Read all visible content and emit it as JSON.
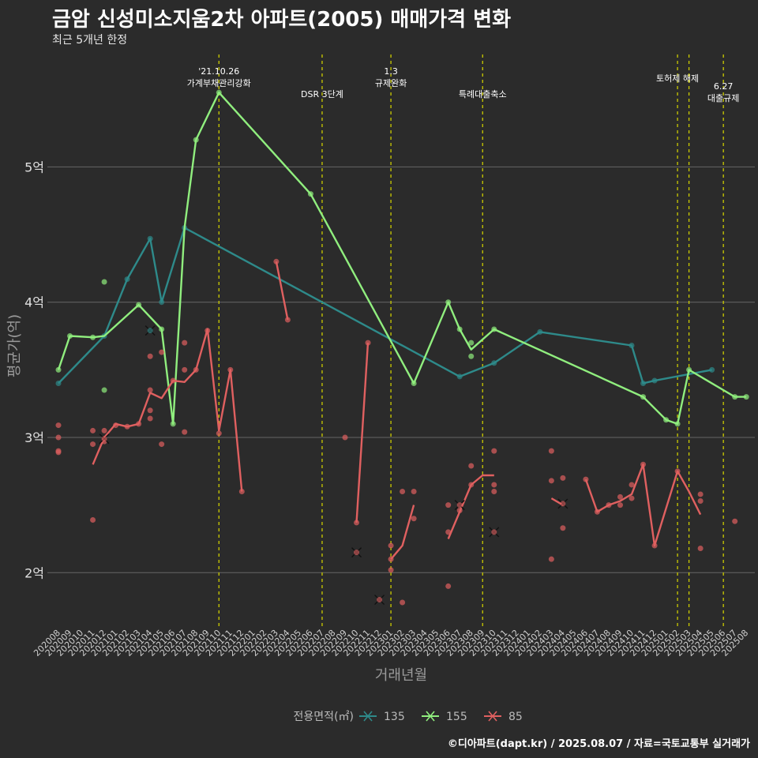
{
  "header": {
    "title": "금암 신성미소지움2차 아파트(2005) 매매가격 변화",
    "subtitle": "최근 5개년 한정"
  },
  "footer": {
    "source": "©디아파트(dapt.kr) / 2025.08.07 / 자료=국토교통부 실거래가"
  },
  "colors": {
    "s135": "#2e8a8a",
    "s155": "#90ee7e",
    "s85": "#e06060",
    "vline": "#cccc00",
    "grid": "#666666"
  },
  "chart_data": {
    "type": "line",
    "xlabel": "거래년월",
    "ylabel": "평균가(억)",
    "x_categories": [
      "202008",
      "202009",
      "202010",
      "202011",
      "202012",
      "202101",
      "202102",
      "202103",
      "202104",
      "202105",
      "202106",
      "202107",
      "202108",
      "202109",
      "202110",
      "202111",
      "202112",
      "202201",
      "202202",
      "202203",
      "202204",
      "202205",
      "202206",
      "202207",
      "202208",
      "202209",
      "202210",
      "202211",
      "202212",
      "202301",
      "202302",
      "202303",
      "202304",
      "202305",
      "202306",
      "202307",
      "202308",
      "202309",
      "202310",
      "202311",
      "202312",
      "202401",
      "202402",
      "202403",
      "202404",
      "202405",
      "202406",
      "202407",
      "202408",
      "202409",
      "202410",
      "202411",
      "202412",
      "202501",
      "202502",
      "202503",
      "202504",
      "202505",
      "202506",
      "202507",
      "202508"
    ],
    "y_ticks": [
      {
        "value": 2,
        "label": "2억"
      },
      {
        "value": 3,
        "label": "3억"
      },
      {
        "value": 4,
        "label": "4억"
      },
      {
        "value": 5,
        "label": "5억"
      }
    ],
    "ylim": [
      1.6,
      6.1
    ],
    "legend": {
      "title": "전용면적(㎡)",
      "position": "bottom"
    },
    "series": [
      {
        "name": "135",
        "color": "#2e8a8a",
        "line": [
          [
            "202008",
            3.4
          ],
          [
            "202012",
            3.75
          ],
          [
            "202102",
            4.17
          ],
          [
            "202104",
            4.47
          ],
          [
            "202105",
            4.0
          ],
          [
            "202107",
            4.55
          ],
          [
            "202307",
            3.45
          ],
          [
            "202310",
            3.55
          ],
          [
            "202402",
            3.78
          ],
          [
            "202410",
            3.68
          ],
          [
            "202411",
            3.4
          ],
          [
            "202412",
            3.42
          ],
          [
            "202505",
            3.5
          ]
        ],
        "points": [
          [
            "202008",
            3.4
          ],
          [
            "202012",
            3.75
          ],
          [
            "202102",
            4.17
          ],
          [
            "202104",
            4.47
          ],
          [
            "202105",
            4.0
          ],
          [
            "202107",
            4.55
          ],
          [
            "202307",
            3.45
          ],
          [
            "202310",
            3.55
          ],
          [
            "202402",
            3.78
          ],
          [
            "202410",
            3.68
          ],
          [
            "202411",
            3.4
          ],
          [
            "202412",
            3.42
          ],
          [
            "202505",
            3.5
          ]
        ],
        "x_marks": [
          [
            "202104",
            3.79
          ]
        ]
      },
      {
        "name": "155",
        "color": "#90ee7e",
        "line": [
          [
            "202008",
            3.5
          ],
          [
            "202009",
            3.75
          ],
          [
            "202011",
            3.74
          ],
          [
            "202012",
            3.75
          ],
          [
            "202103",
            3.98
          ],
          [
            "202105",
            3.8
          ],
          [
            "202106",
            3.1
          ],
          [
            "202107",
            4.55
          ],
          [
            "202108",
            5.2
          ],
          [
            "202110",
            5.55
          ],
          [
            "202206",
            4.8
          ],
          [
            "202303",
            3.4
          ],
          [
            "202306",
            4.0
          ],
          [
            "202307",
            3.8
          ],
          [
            "202308",
            3.65
          ],
          [
            "202310",
            3.8
          ],
          [
            "202411",
            3.3
          ],
          [
            "202501",
            3.13
          ],
          [
            "202502",
            3.1
          ],
          [
            "202503",
            3.5
          ],
          [
            "202507",
            3.3
          ],
          [
            "202508",
            3.3
          ]
        ],
        "points": [
          [
            "202008",
            3.5
          ],
          [
            "202009",
            3.75
          ],
          [
            "202011",
            3.74
          ],
          [
            "202012",
            4.15
          ],
          [
            "202012",
            3.35
          ],
          [
            "202103",
            3.98
          ],
          [
            "202105",
            3.8
          ],
          [
            "202106",
            3.1
          ],
          [
            "202108",
            5.2
          ],
          [
            "202110",
            5.55
          ],
          [
            "202206",
            4.8
          ],
          [
            "202303",
            3.4
          ],
          [
            "202306",
            4.0
          ],
          [
            "202307",
            3.8
          ],
          [
            "202308",
            3.7
          ],
          [
            "202308",
            3.6
          ],
          [
            "202310",
            3.8
          ],
          [
            "202411",
            3.3
          ],
          [
            "202501",
            3.13
          ],
          [
            "202502",
            3.1
          ],
          [
            "202503",
            3.5
          ],
          [
            "202507",
            3.3
          ],
          [
            "202508",
            3.3
          ]
        ],
        "x_marks": []
      },
      {
        "name": "85",
        "color": "#e06060",
        "line_segments": [
          [
            [
              "202011",
              2.8
            ],
            [
              "202012",
              3.0
            ],
            [
              "202101",
              3.1
            ],
            [
              "202102",
              3.08
            ],
            [
              "202103",
              3.1
            ],
            [
              "202104",
              3.33
            ],
            [
              "202105",
              3.29
            ],
            [
              "202106",
              3.42
            ],
            [
              "202107",
              3.41
            ],
            [
              "202108",
              3.5
            ],
            [
              "202109",
              3.8
            ],
            [
              "202110",
              3.05
            ],
            [
              "202111",
              3.5
            ],
            [
              "202112",
              2.6
            ]
          ],
          [
            [
              "202203",
              4.3
            ],
            [
              "202204",
              3.87
            ]
          ],
          [
            [
              "202210",
              2.37
            ],
            [
              "202211",
              3.7
            ]
          ],
          [
            [
              "202301",
              2.1
            ],
            [
              "202302",
              2.2
            ],
            [
              "202303",
              2.5
            ]
          ],
          [
            [
              "202306",
              2.25
            ],
            [
              "202307",
              2.45
            ],
            [
              "202308",
              2.65
            ],
            [
              "202309",
              2.72
            ],
            [
              "202310",
              2.72
            ]
          ],
          [
            [
              "202403",
              2.55
            ],
            [
              "202404",
              2.5
            ]
          ],
          [
            [
              "202406",
              2.69
            ],
            [
              "202407",
              2.45
            ],
            [
              "202408",
              2.5
            ],
            [
              "202409",
              2.53
            ],
            [
              "202410",
              2.58
            ],
            [
              "202411",
              2.8
            ],
            [
              "202412",
              2.2
            ],
            [
              "202502",
              2.75
            ],
            [
              "202503",
              2.6
            ],
            [
              "202504",
              2.43
            ]
          ]
        ],
        "points": [
          [
            "202008",
            3.09
          ],
          [
            "202008",
            3.0
          ],
          [
            "202008",
            2.9
          ],
          [
            "202008",
            2.89
          ],
          [
            "202011",
            3.05
          ],
          [
            "202011",
            2.95
          ],
          [
            "202011",
            2.39
          ],
          [
            "202012",
            3.05
          ],
          [
            "202012",
            2.97
          ],
          [
            "202101",
            3.09
          ],
          [
            "202102",
            3.08
          ],
          [
            "202103",
            3.1
          ],
          [
            "202104",
            3.6
          ],
          [
            "202104",
            3.35
          ],
          [
            "202104",
            3.2
          ],
          [
            "202104",
            3.14
          ],
          [
            "202105",
            3.63
          ],
          [
            "202105",
            2.95
          ],
          [
            "202106",
            3.42
          ],
          [
            "202107",
            3.7
          ],
          [
            "202107",
            3.5
          ],
          [
            "202107",
            3.04
          ],
          [
            "202108",
            3.5
          ],
          [
            "202109",
            3.79
          ],
          [
            "202110",
            3.03
          ],
          [
            "202111",
            3.5
          ],
          [
            "202112",
            2.6
          ],
          [
            "202203",
            4.3
          ],
          [
            "202204",
            3.87
          ],
          [
            "202209",
            3.0
          ],
          [
            "202210",
            2.37
          ],
          [
            "202211",
            3.7
          ],
          [
            "202301",
            2.2
          ],
          [
            "202301",
            2.1
          ],
          [
            "202301",
            2.02
          ],
          [
            "202302",
            2.6
          ],
          [
            "202302",
            1.78
          ],
          [
            "202303",
            2.6
          ],
          [
            "202303",
            2.4
          ],
          [
            "202306",
            2.5
          ],
          [
            "202306",
            2.3
          ],
          [
            "202306",
            1.9
          ],
          [
            "202307",
            2.46
          ],
          [
            "202308",
            2.79
          ],
          [
            "202308",
            2.65
          ],
          [
            "202310",
            2.9
          ],
          [
            "202310",
            2.65
          ],
          [
            "202310",
            2.6
          ],
          [
            "202403",
            2.9
          ],
          [
            "202403",
            2.68
          ],
          [
            "202403",
            2.1
          ],
          [
            "202404",
            2.7
          ],
          [
            "202404",
            2.33
          ],
          [
            "202406",
            2.69
          ],
          [
            "202407",
            2.45
          ],
          [
            "202408",
            2.5
          ],
          [
            "202409",
            2.56
          ],
          [
            "202409",
            2.5
          ],
          [
            "202410",
            2.65
          ],
          [
            "202410",
            2.55
          ],
          [
            "202411",
            2.8
          ],
          [
            "202412",
            2.2
          ],
          [
            "202502",
            2.75
          ],
          [
            "202504",
            2.58
          ],
          [
            "202504",
            2.53
          ],
          [
            "202504",
            2.18
          ],
          [
            "202507",
            2.38
          ]
        ],
        "x_marks": [
          [
            "202012",
            2.99
          ],
          [
            "202210",
            2.15
          ],
          [
            "202212",
            1.8
          ],
          [
            "202307",
            2.5
          ],
          [
            "202310",
            2.3
          ],
          [
            "202404",
            2.51
          ]
        ]
      }
    ],
    "annotations": [
      {
        "x": "202110",
        "lines": [
          "'21.10.26",
          "가계부채관리강화"
        ],
        "level": 1
      },
      {
        "x": "202207",
        "lines": [
          "DSR 3단계"
        ],
        "level": 2
      },
      {
        "x": "202301",
        "lines": [
          "1.3",
          "규제완화"
        ],
        "level": 1
      },
      {
        "x": "202309",
        "lines": [
          "특례대출축소"
        ],
        "level": 2
      },
      {
        "x": "202502",
        "lines": [
          "토허제 해제"
        ],
        "level": 1.4
      },
      {
        "x": "202503",
        "lines": [],
        "level": 0
      },
      {
        "x": "202506",
        "lines": [
          "6.27",
          "대출규제"
        ],
        "level": 1.7
      }
    ]
  }
}
